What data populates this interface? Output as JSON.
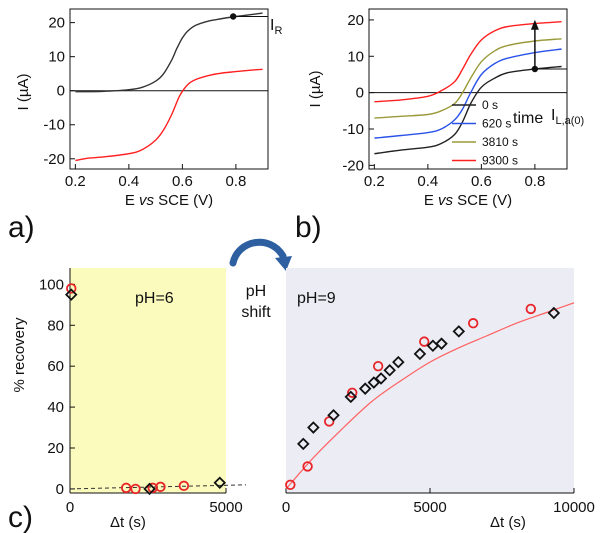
{
  "chart_data": [
    {
      "panel": "a)",
      "type": "line",
      "xlabel_parts": [
        "E ",
        "vs",
        " SCE (V)"
      ],
      "ylabel": "I (µA)",
      "xlim": [
        0.18,
        0.92
      ],
      "ylim": [
        -23,
        24
      ],
      "xticks": [
        "0.2",
        "0.4",
        "0.6",
        "0.8"
      ],
      "yticks": [
        "-20",
        "-10",
        "0",
        "10",
        "20"
      ],
      "annotation": "I",
      "annotation_sub": "R",
      "marker": {
        "x": 0.79,
        "y": 21.8
      },
      "series": [
        {
          "color": "#333333",
          "x": [
            0.2,
            0.3,
            0.4,
            0.45,
            0.5,
            0.53,
            0.56,
            0.58,
            0.6,
            0.62,
            0.65,
            0.7,
            0.75,
            0.8,
            0.85,
            0.9
          ],
          "y": [
            -0.3,
            -0.2,
            0.3,
            1.0,
            2.8,
            5.0,
            9.0,
            12.5,
            15.5,
            17.5,
            19.2,
            20.5,
            21.2,
            21.8,
            22.3,
            22.8
          ]
        },
        {
          "color": "#ff2020",
          "x": [
            0.2,
            0.25,
            0.3,
            0.4,
            0.45,
            0.5,
            0.53,
            0.56,
            0.59,
            0.62,
            0.65,
            0.7,
            0.75,
            0.8,
            0.85,
            0.9
          ],
          "y": [
            -20.5,
            -19.8,
            -19.5,
            -18.5,
            -17.3,
            -14.5,
            -11.5,
            -7.0,
            -1.5,
            1.8,
            3.3,
            4.5,
            5.2,
            5.6,
            6.0,
            6.3
          ]
        }
      ]
    },
    {
      "panel": "b)",
      "type": "line",
      "xlabel_parts": [
        "E ",
        "vs",
        " SCE (V)"
      ],
      "ylabel": "I (µA)",
      "xlim": [
        0.18,
        0.92
      ],
      "ylim": [
        -21,
        23
      ],
      "xticks": [
        "0.2",
        "0.4",
        "0.6",
        "0.8"
      ],
      "yticks": [
        "-20",
        "-10",
        "0",
        "10",
        "20"
      ],
      "annotation_time": "time",
      "annotation": "I",
      "annotation_sub": "L,a(0)",
      "marker": {
        "x": 0.8,
        "y": 6.5
      },
      "series": [
        {
          "name": "0 s",
          "color": "#222222",
          "x": [
            0.2,
            0.3,
            0.4,
            0.45,
            0.5,
            0.53,
            0.56,
            0.6,
            0.65,
            0.7,
            0.8,
            0.9
          ],
          "y": [
            -16.8,
            -15.8,
            -15.0,
            -14.0,
            -11.5,
            -8.0,
            -3.0,
            1.5,
            4.0,
            5.5,
            6.5,
            7.2
          ]
        },
        {
          "name": "620 s",
          "color": "#2a52e8",
          "x": [
            0.2,
            0.3,
            0.4,
            0.45,
            0.5,
            0.53,
            0.56,
            0.6,
            0.65,
            0.7,
            0.8,
            0.9
          ],
          "y": [
            -12.5,
            -11.8,
            -11.0,
            -10.0,
            -7.5,
            -4.5,
            0.0,
            5.0,
            8.0,
            9.5,
            11.0,
            12.0
          ]
        },
        {
          "name": "3810 s",
          "color": "#9a9a3a",
          "x": [
            0.2,
            0.3,
            0.4,
            0.45,
            0.5,
            0.53,
            0.56,
            0.6,
            0.65,
            0.7,
            0.8,
            0.9
          ],
          "y": [
            -7.0,
            -6.5,
            -6.0,
            -5.0,
            -3.0,
            0.0,
            4.0,
            8.5,
            11.5,
            13.0,
            14.2,
            14.8
          ]
        },
        {
          "name": "9300 s",
          "color": "#ff2020",
          "x": [
            0.2,
            0.3,
            0.4,
            0.45,
            0.5,
            0.53,
            0.56,
            0.6,
            0.65,
            0.7,
            0.8,
            0.9
          ],
          "y": [
            -2.5,
            -2.0,
            -1.0,
            0.5,
            3.0,
            6.5,
            10.5,
            14.5,
            17.0,
            18.2,
            19.0,
            19.5
          ]
        }
      ]
    },
    {
      "panel": "c)",
      "part": "left",
      "type": "scatter",
      "xlabel": "Δt (s)",
      "ylabel": "% recovery",
      "annotation": "pH=6",
      "background": "#fbfbbe",
      "xlim": [
        0,
        5000
      ],
      "ylim": [
        -2,
        108
      ],
      "xticks": [
        "0",
        "5000"
      ],
      "yticks": [
        "0",
        "20",
        "40",
        "60",
        "80",
        "100"
      ],
      "circles": {
        "color": "#e8262a",
        "x": [
          40,
          1800,
          2100,
          2650,
          2900,
          3650
        ],
        "y": [
          98,
          0.5,
          0,
          0.5,
          1,
          1.5
        ]
      },
      "diamonds": {
        "color": "#111111",
        "x": [
          40,
          2550,
          4800
        ],
        "y": [
          95,
          0,
          3
        ]
      },
      "trend": {
        "x": [
          0,
          5000
        ],
        "y": [
          0,
          2
        ]
      }
    },
    {
      "panel": "c)",
      "part": "right",
      "type": "scatter",
      "xlabel": "Δt (s)",
      "annotation": "pH=9",
      "background": "#ececf5",
      "xlim": [
        0,
        10000
      ],
      "ylim": [
        -2,
        108
      ],
      "xticks": [
        "0",
        "5000",
        "10000"
      ],
      "circles": {
        "color": "#e8262a",
        "x": [
          150,
          750,
          1500,
          2300,
          3200,
          4800,
          6500,
          8500
        ],
        "y": [
          2,
          11,
          33,
          47,
          60,
          72,
          81,
          88
        ]
      },
      "diamonds": {
        "color": "#111111",
        "x": [
          600,
          950,
          1650,
          2250,
          2750,
          3050,
          3300,
          3600,
          3900,
          4650,
          5100,
          5400,
          6000,
          9300
        ],
        "y": [
          22,
          30,
          36,
          45,
          49,
          52,
          54,
          58,
          62,
          66,
          70,
          71,
          77,
          86
        ]
      },
      "fit": {
        "x": [
          0,
          1000,
          2000,
          3000,
          4000,
          5000,
          6000,
          7000,
          8000,
          9000,
          10000
        ],
        "y": [
          0,
          16,
          30,
          43,
          53,
          62,
          69,
          75,
          81,
          86,
          91
        ]
      }
    }
  ],
  "shift_label": [
    "pH",
    "shift"
  ]
}
